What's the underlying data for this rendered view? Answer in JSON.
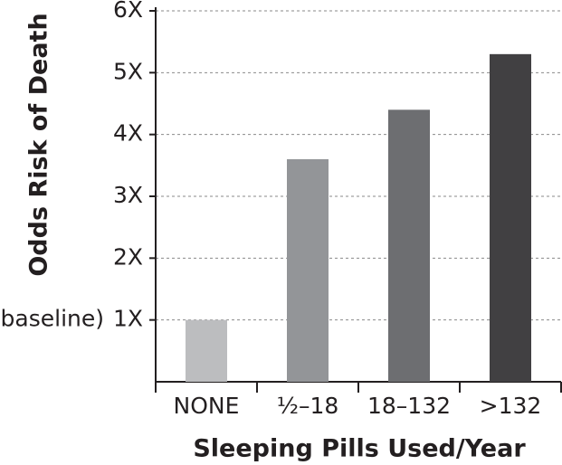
{
  "chart_data": {
    "type": "bar",
    "y_label": "Odds Risk of Death",
    "x_label": "Sleeping Pills Used/Year",
    "annotation": "(baseline)",
    "categories": [
      "NONE",
      "½–18",
      "18–132",
      ">132"
    ],
    "values": [
      1.0,
      3.6,
      4.4,
      5.3
    ],
    "colors": [
      "#bcbdbf",
      "#939598",
      "#6d6e71",
      "#414042"
    ],
    "ylim": [
      0,
      6
    ],
    "yticks": [
      {
        "value": 1,
        "label": "1X"
      },
      {
        "value": 2,
        "label": "2X"
      },
      {
        "value": 3,
        "label": "3X"
      },
      {
        "value": 4,
        "label": "4X"
      },
      {
        "value": 5,
        "label": "5X"
      },
      {
        "value": 6,
        "label": "6X"
      }
    ],
    "grid": true
  }
}
